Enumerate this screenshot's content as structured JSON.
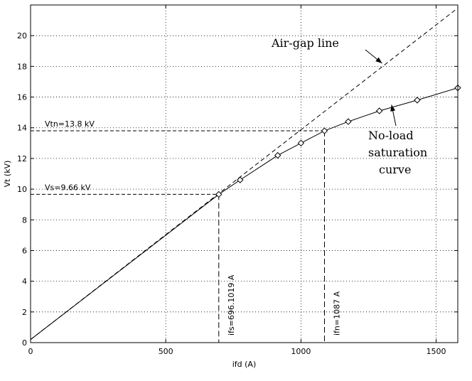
{
  "chart_data": {
    "type": "line",
    "xlabel": "ifd (A)",
    "ylabel": "Vt (kV)",
    "xlim": [
      0,
      1580
    ],
    "ylim": [
      0,
      22
    ],
    "x_ticks": [
      0,
      500,
      1000,
      1500
    ],
    "y_ticks": [
      0,
      2,
      4,
      6,
      8,
      10,
      12,
      14,
      16,
      18,
      20
    ],
    "grid": true,
    "series": [
      {
        "name": "No-load saturation curve",
        "style": "solid",
        "marker": "diamond",
        "x": [
          0,
          696.1,
          775,
          914,
          1000,
          1087,
          1175,
          1290,
          1430,
          1580
        ],
        "y": [
          0.2,
          9.66,
          10.6,
          12.2,
          13.0,
          13.8,
          14.4,
          15.1,
          15.8,
          16.6
        ]
      },
      {
        "name": "Air-gap line",
        "style": "dashed",
        "x": [
          0,
          1580
        ],
        "y": [
          0.2,
          21.8
        ]
      }
    ],
    "reference_lines": [
      {
        "label": "Vtn=13.8 kV",
        "axis": "y",
        "value": 13.8,
        "until_x": 1087
      },
      {
        "label": "Vs=9.66 kV",
        "axis": "y",
        "value": 9.66,
        "until_x": 696.1
      },
      {
        "label": "ifs=696.1019 A",
        "axis": "x",
        "value": 696.1,
        "until_y": 9.66
      },
      {
        "label": "ifn=1087 A",
        "axis": "x",
        "value": 1087,
        "until_y": 13.8
      }
    ],
    "annotations": [
      {
        "text": "Air-gap line",
        "arrow_to": {
          "x": 1300,
          "y": 18.2
        }
      },
      {
        "text": "No-load\nsaturation\ncurve",
        "arrow_to": {
          "x": 1335,
          "y": 15.5
        }
      }
    ]
  }
}
